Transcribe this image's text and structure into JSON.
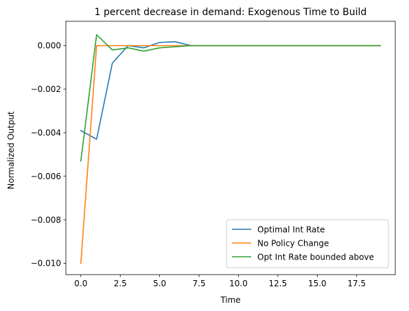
{
  "chart_data": {
    "type": "line",
    "title": "1 percent decrease in demand: Exogenous Time to Build",
    "xlabel": "Time",
    "ylabel": "Normalized Output",
    "xlim": [
      -0.95,
      19.95
    ],
    "ylim": [
      -0.01052,
      0.00112
    ],
    "x_ticks": [
      0.0,
      2.5,
      5.0,
      7.5,
      10.0,
      12.5,
      15.0,
      17.5
    ],
    "x_tick_labels": [
      "0.0",
      "2.5",
      "5.0",
      "7.5",
      "10.0",
      "12.5",
      "15.0",
      "17.5"
    ],
    "y_ticks": [
      -0.01,
      -0.008,
      -0.006,
      -0.004,
      -0.002,
      0.0
    ],
    "y_tick_labels": [
      "−0.010",
      "−0.008",
      "−0.006",
      "−0.004",
      "−0.002",
      "0.000"
    ],
    "grid": false,
    "legend_position": "lower-right",
    "x": [
      0,
      1,
      2,
      3,
      4,
      5,
      6,
      7,
      8,
      9,
      10,
      11,
      12,
      13,
      14,
      15,
      16,
      17,
      18,
      19
    ],
    "series": [
      {
        "name": "Optimal Int Rate",
        "color": "#1f77b4",
        "values": [
          -0.0039,
          -0.0043,
          -0.0008,
          0.0,
          -0.0001,
          0.00015,
          0.00018,
          0.0,
          0.0,
          0.0,
          0.0,
          0.0,
          0.0,
          0.0,
          0.0,
          0.0,
          0.0,
          0.0,
          0.0,
          0.0
        ]
      },
      {
        "name": "No Policy Change",
        "color": "#ff7f0e",
        "values": [
          -0.01,
          0.0,
          0.0,
          0.0,
          0.0,
          0.0,
          0.0,
          0.0,
          0.0,
          0.0,
          0.0,
          0.0,
          0.0,
          0.0,
          0.0,
          0.0,
          0.0,
          0.0,
          0.0,
          0.0
        ]
      },
      {
        "name": "Opt Int Rate bounded above",
        "color": "#2ca02c",
        "values": [
          -0.0053,
          0.0005,
          -0.0002,
          -0.0001,
          -0.00025,
          -0.0001,
          -5e-05,
          0.0,
          0.0,
          0.0,
          0.0,
          0.0,
          0.0,
          0.0,
          0.0,
          0.0,
          0.0,
          0.0,
          0.0,
          0.0
        ]
      }
    ]
  }
}
